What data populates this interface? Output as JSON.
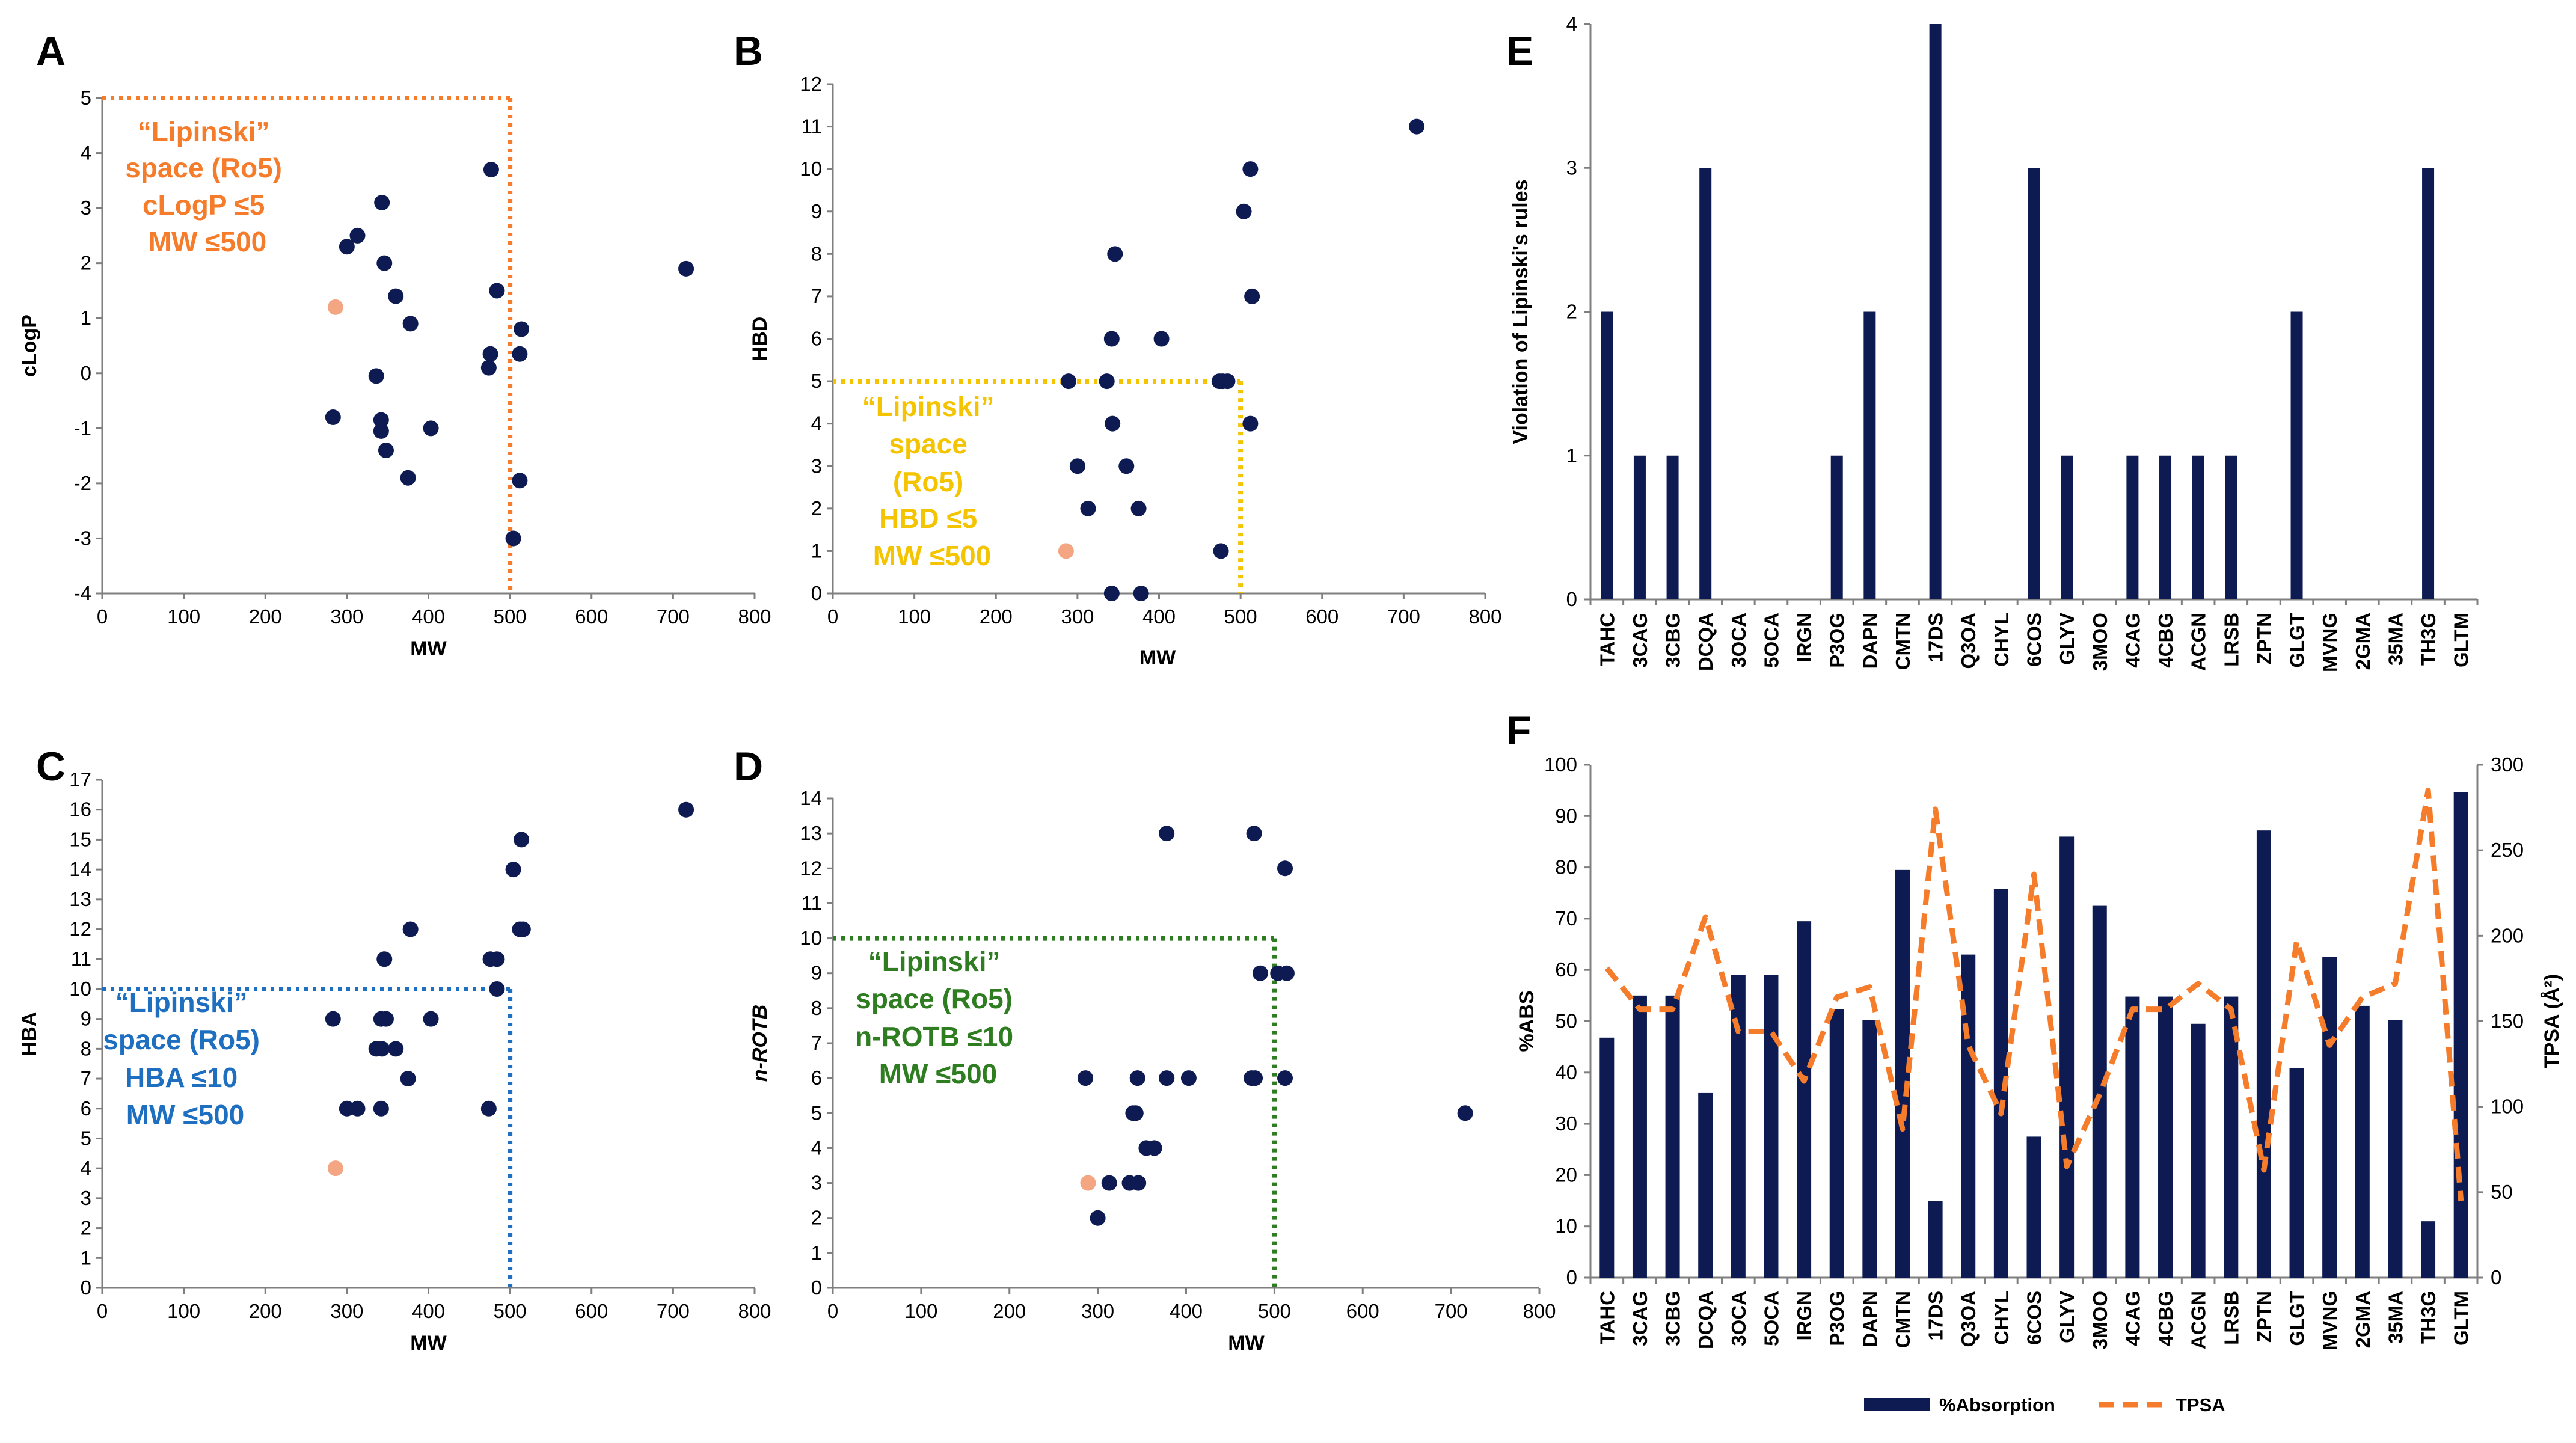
{
  "colors": {
    "point": "#0D1B52",
    "highlight": "#F4A582",
    "bar": "#0D1B52",
    "tpsa_line": "#F47C2A",
    "axis": "#7F7F7F",
    "annot_A": "#F47C2A",
    "annot_B": "#F5C400",
    "annot_C": "#1F6FC1",
    "annot_D": "#2E7D20"
  },
  "chart_data": [
    {
      "panel": "A",
      "type": "scatter",
      "xlabel": "MW",
      "ylabel": "cLogP",
      "xlim": [
        0,
        800
      ],
      "ylim": [
        -4,
        5
      ],
      "xticks": [
        "0",
        "100",
        "200",
        "300",
        "400",
        "500",
        "600",
        "700",
        "800"
      ],
      "yticks": [
        "-4",
        "-3",
        "-2",
        "-1",
        "0",
        "1",
        "2",
        "3",
        "4",
        "5"
      ],
      "points": [
        {
          "x": 286,
          "y": 1.2,
          "highlight": true
        },
        {
          "x": 283,
          "y": -0.8
        },
        {
          "x": 300,
          "y": 2.3
        },
        {
          "x": 313,
          "y": 2.5
        },
        {
          "x": 336,
          "y": -0.05
        },
        {
          "x": 342,
          "y": -0.85
        },
        {
          "x": 342,
          "y": -1.05
        },
        {
          "x": 343,
          "y": 3.1
        },
        {
          "x": 346,
          "y": 2.0
        },
        {
          "x": 348,
          "y": -1.4
        },
        {
          "x": 360,
          "y": 1.4
        },
        {
          "x": 375,
          "y": -1.9
        },
        {
          "x": 378,
          "y": 0.9
        },
        {
          "x": 403,
          "y": -1.0
        },
        {
          "x": 474,
          "y": 0.1
        },
        {
          "x": 476,
          "y": 0.35
        },
        {
          "x": 477,
          "y": 3.7
        },
        {
          "x": 484,
          "y": 1.5
        },
        {
          "x": 504,
          "y": -3.0
        },
        {
          "x": 512,
          "y": -1.95
        },
        {
          "x": 512,
          "y": 0.35
        },
        {
          "x": 514,
          "y": 0.8
        },
        {
          "x": 716,
          "y": 1.9
        }
      ],
      "threshold": {
        "x": 500,
        "y": 5
      },
      "annotation": [
        "“Lipinski”",
        "space (Ro5)",
        "cLogP ≤5",
        "MW ≤500"
      ]
    },
    {
      "panel": "B",
      "type": "scatter",
      "xlabel": "MW",
      "ylabel": "HBD",
      "xlim": [
        0,
        800
      ],
      "ylim": [
        0,
        12
      ],
      "xticks": [
        "0",
        "100",
        "200",
        "300",
        "400",
        "500",
        "600",
        "700",
        "800"
      ],
      "yticks": [
        "0",
        "1",
        "2",
        "3",
        "4",
        "5",
        "6",
        "7",
        "8",
        "9",
        "10",
        "11",
        "12"
      ],
      "points": [
        {
          "x": 286,
          "y": 1,
          "highlight": true
        },
        {
          "x": 289,
          "y": 5
        },
        {
          "x": 300,
          "y": 3
        },
        {
          "x": 313,
          "y": 2
        },
        {
          "x": 336,
          "y": 5
        },
        {
          "x": 342,
          "y": 0
        },
        {
          "x": 342,
          "y": 6
        },
        {
          "x": 343,
          "y": 4
        },
        {
          "x": 346,
          "y": 8
        },
        {
          "x": 360,
          "y": 3
        },
        {
          "x": 375,
          "y": 2
        },
        {
          "x": 378,
          "y": 0
        },
        {
          "x": 403,
          "y": 6
        },
        {
          "x": 474,
          "y": 5
        },
        {
          "x": 476,
          "y": 1
        },
        {
          "x": 478,
          "y": 5
        },
        {
          "x": 484,
          "y": 5
        },
        {
          "x": 504,
          "y": 9
        },
        {
          "x": 512,
          "y": 4
        },
        {
          "x": 512,
          "y": 10
        },
        {
          "x": 514,
          "y": 7
        },
        {
          "x": 716,
          "y": 11
        }
      ],
      "threshold": {
        "x": 500,
        "y": 5
      },
      "annotation": [
        "“Lipinski”",
        "space",
        "(Ro5)",
        "HBD ≤5",
        "MW ≤500"
      ]
    },
    {
      "panel": "C",
      "type": "scatter",
      "xlabel": "MW",
      "ylabel": "HBA",
      "xlim": [
        0,
        800
      ],
      "ylim": [
        0,
        17
      ],
      "xticks": [
        "0",
        "100",
        "200",
        "300",
        "400",
        "500",
        "600",
        "700",
        "800"
      ],
      "yticks": [
        "0",
        "1",
        "2",
        "3",
        "4",
        "5",
        "6",
        "7",
        "8",
        "9",
        "10",
        "11",
        "12",
        "13",
        "14",
        "15",
        "16",
        "17"
      ],
      "points": [
        {
          "x": 286,
          "y": 4,
          "highlight": true
        },
        {
          "x": 283,
          "y": 9
        },
        {
          "x": 300,
          "y": 6
        },
        {
          "x": 313,
          "y": 6
        },
        {
          "x": 336,
          "y": 8
        },
        {
          "x": 342,
          "y": 6
        },
        {
          "x": 342,
          "y": 9
        },
        {
          "x": 343,
          "y": 8
        },
        {
          "x": 346,
          "y": 11
        },
        {
          "x": 348,
          "y": 9
        },
        {
          "x": 360,
          "y": 8
        },
        {
          "x": 375,
          "y": 7
        },
        {
          "x": 378,
          "y": 12
        },
        {
          "x": 403,
          "y": 9
        },
        {
          "x": 474,
          "y": 6
        },
        {
          "x": 476,
          "y": 11
        },
        {
          "x": 484,
          "y": 11
        },
        {
          "x": 484,
          "y": 10
        },
        {
          "x": 504,
          "y": 14
        },
        {
          "x": 512,
          "y": 12
        },
        {
          "x": 514,
          "y": 15
        },
        {
          "x": 516,
          "y": 12
        },
        {
          "x": 716,
          "y": 16
        }
      ],
      "threshold": {
        "x": 500,
        "y": 10
      },
      "annotation": [
        "“Lipinski”",
        "space (Ro5)",
        "HBA ≤10",
        "MW ≤500"
      ]
    },
    {
      "panel": "D",
      "type": "scatter",
      "xlabel": "MW",
      "ylabel": "n-ROTB",
      "xlim": [
        0,
        800
      ],
      "ylim": [
        0,
        14
      ],
      "xticks": [
        "0",
        "100",
        "200",
        "300",
        "400",
        "500",
        "600",
        "700",
        "800"
      ],
      "yticks": [
        "0",
        "1",
        "2",
        "3",
        "4",
        "5",
        "6",
        "7",
        "8",
        "9",
        "10",
        "11",
        "12",
        "13",
        "14"
      ],
      "points": [
        {
          "x": 289,
          "y": 3,
          "highlight": true
        },
        {
          "x": 286,
          "y": 6
        },
        {
          "x": 300,
          "y": 2
        },
        {
          "x": 313,
          "y": 3
        },
        {
          "x": 336,
          "y": 3
        },
        {
          "x": 340,
          "y": 5
        },
        {
          "x": 343,
          "y": 5
        },
        {
          "x": 345,
          "y": 6
        },
        {
          "x": 346,
          "y": 3
        },
        {
          "x": 355,
          "y": 4
        },
        {
          "x": 364,
          "y": 4
        },
        {
          "x": 378,
          "y": 6
        },
        {
          "x": 378,
          "y": 13
        },
        {
          "x": 403,
          "y": 6
        },
        {
          "x": 474,
          "y": 6
        },
        {
          "x": 477,
          "y": 13
        },
        {
          "x": 478,
          "y": 6
        },
        {
          "x": 484,
          "y": 9
        },
        {
          "x": 504,
          "y": 9
        },
        {
          "x": 512,
          "y": 6
        },
        {
          "x": 512,
          "y": 12
        },
        {
          "x": 514,
          "y": 9
        },
        {
          "x": 716,
          "y": 5
        }
      ],
      "threshold": {
        "x": 500,
        "y": 10
      },
      "annotation": [
        "“Lipinski”",
        "space (Ro5)",
        "n-ROTB ≤10",
        "MW ≤500"
      ]
    },
    {
      "panel": "E",
      "type": "bar",
      "xlabel": "",
      "ylabel": "Violation of Lipinski's rules",
      "ylim": [
        0,
        4
      ],
      "yticks": [
        "0",
        "1",
        "2",
        "3",
        "4"
      ],
      "categories": [
        "TAHC",
        "3CAG",
        "3CBG",
        "DCQA",
        "3OCA",
        "5OCA",
        "IRGN",
        "P3OG",
        "DAPN",
        "CMTN",
        "17DS",
        "Q3OA",
        "CHYL",
        "6COS",
        "GLYV",
        "3MOO",
        "4CAG",
        "4CBG",
        "ACGN",
        "LRSB",
        "ZPTN",
        "GLGT",
        "MVNG",
        "2GMA",
        "35MA",
        "TH3G",
        "GLTM"
      ],
      "values": [
        2,
        1,
        1,
        3,
        0,
        0,
        0,
        1,
        2,
        0,
        4,
        0,
        0,
        3,
        1,
        0,
        1,
        1,
        1,
        1,
        0,
        2,
        0,
        0,
        0,
        3,
        0
      ]
    },
    {
      "panel": "F",
      "type": "bar+line",
      "ylabel": "%ABS",
      "y2label": "TPSA (Å²)",
      "ylim": [
        0,
        100
      ],
      "y2lim": [
        0,
        300
      ],
      "yticks": [
        "0",
        "10",
        "20",
        "30",
        "40",
        "50",
        "60",
        "70",
        "80",
        "90",
        "100"
      ],
      "y2ticks": [
        "0",
        "50",
        "100",
        "150",
        "200",
        "250",
        "300"
      ],
      "categories": [
        "TAHC",
        "3CAG",
        "3CBG",
        "DCQA",
        "3OCA",
        "5OCA",
        "IRGN",
        "P3OG",
        "DAPN",
        "CMTN",
        "17DS",
        "Q3OA",
        "CHYL",
        "6COS",
        "GLYV",
        "3MOO",
        "4CAG",
        "4CBG",
        "ACGN",
        "LRSB",
        "ZPTN",
        "GLGT",
        "MVNG",
        "2GMA",
        "35MA",
        "TH3G",
        "GLTM"
      ],
      "series": [
        {
          "name": "%Absorption",
          "axis": "left",
          "values": [
            46.8,
            55,
            55,
            36,
            59,
            59,
            69.5,
            52.3,
            50.2,
            79.5,
            15,
            63,
            75.8,
            27.5,
            86,
            72.5,
            54.8,
            54.8,
            49.5,
            54.8,
            87.2,
            40.9,
            62.5,
            53,
            50.2,
            11,
            94.7
          ]
        },
        {
          "name": "TPSA",
          "axis": "right",
          "values": [
            181,
            157,
            157,
            211,
            144,
            144,
            115,
            164,
            170,
            87,
            274,
            136,
            96,
            236,
            65,
            107,
            157,
            157,
            172,
            157,
            63,
            197,
            136,
            164,
            172,
            285,
            45
          ]
        }
      ],
      "legend": [
        "%Absorption",
        "TPSA"
      ]
    }
  ]
}
